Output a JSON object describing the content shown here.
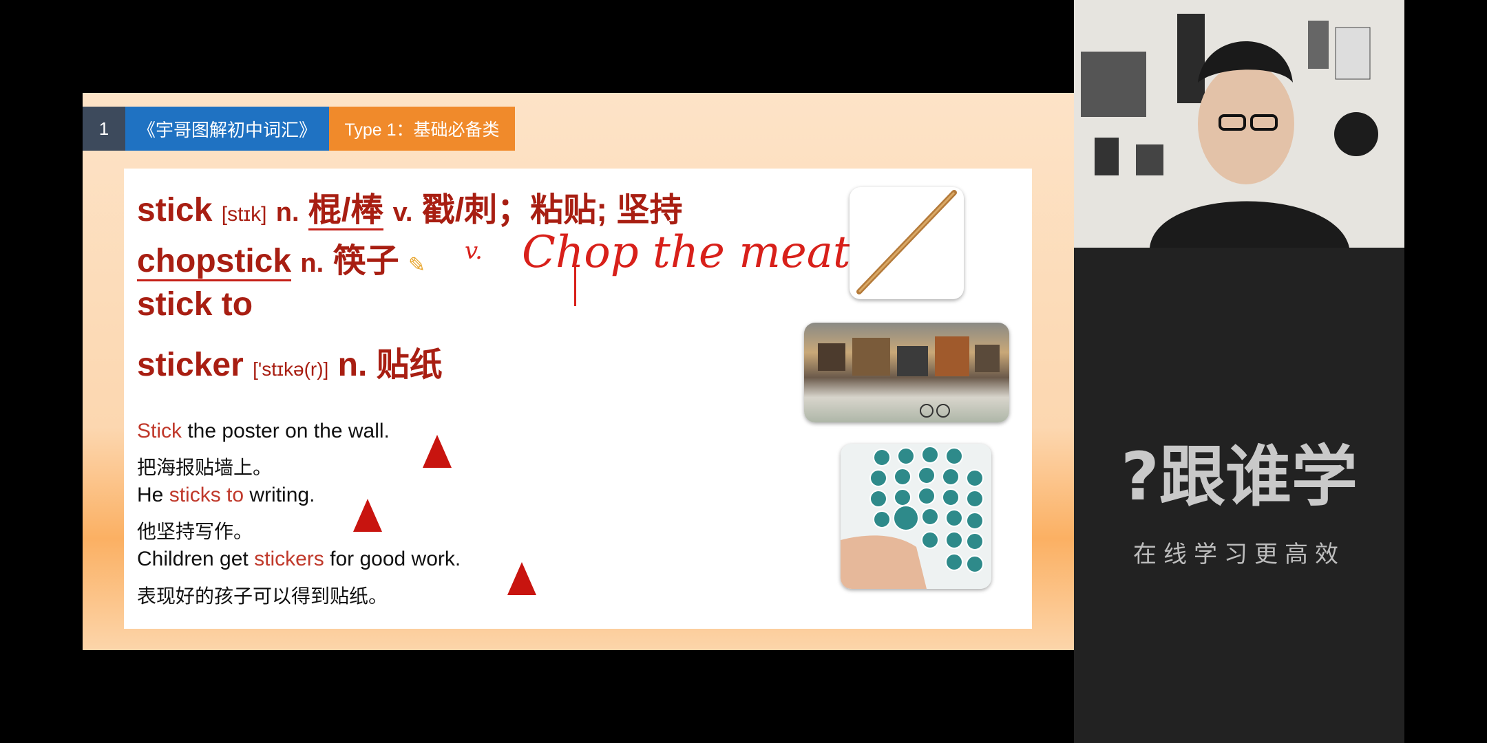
{
  "slide": {
    "header": {
      "number": "1",
      "title": "《宇哥图解初中词汇》",
      "type": "Type 1：基础必备类"
    },
    "lines": [
      {
        "word": "stick",
        "phonetic": "[stɪk]",
        "pos1": "n.",
        "meaning1": "棍/棒",
        "pos2": "v.",
        "meaning2": "戳/刺；粘贴; 坚持"
      },
      {
        "word": "chopstick",
        "pos": "n.",
        "meaning": "筷子"
      },
      {
        "word": "stick to"
      },
      {
        "word": "sticker",
        "phonetic": "['stɪkə(r)]",
        "pos": "n.",
        "meaning": "贴纸"
      }
    ],
    "examples": [
      {
        "hl": "Stick",
        "rest": " the poster on the wall.",
        "zh": "把海报贴墙上。"
      },
      {
        "pre": "He ",
        "hl": "sticks to",
        "rest": " writing.",
        "zh": "他坚持写作。"
      },
      {
        "pre": "Children get ",
        "hl": "stickers",
        "rest": " for good work.",
        "zh": "表现好的孩子可以得到贴纸。"
      }
    ],
    "annotation": {
      "v": "v.",
      "text": "Chop the meat"
    }
  },
  "brand": {
    "logo": "?跟谁学",
    "slogan": "在线学习更高效"
  },
  "colors": {
    "word_red": "#a81e12",
    "header_blue": "#1f72c2",
    "header_orange": "#f08a2b",
    "header_dark": "#3d4a5c"
  }
}
